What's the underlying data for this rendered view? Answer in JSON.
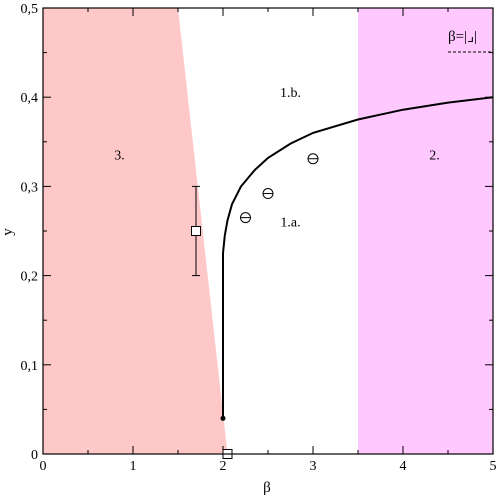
{
  "chart_data": {
    "type": "scatter",
    "title": "",
    "xlabel": "β",
    "ylabel": "y",
    "xlim": [
      0,
      5
    ],
    "ylim": [
      0,
      0.5
    ],
    "x_ticks": [
      "0",
      "1",
      "2",
      "3",
      "4",
      "5"
    ],
    "y_ticks": [
      "0",
      "0,1",
      "0,2",
      "0,3",
      "0,4",
      "0,5"
    ],
    "grid": false,
    "legend": {
      "position": "top-right",
      "entries": [
        {
          "label": "β=|⌟|",
          "style": "dashed"
        }
      ]
    },
    "regions": [
      {
        "label": "3.",
        "color": "#ffc8c8",
        "boundary": [
          [
            0,
            0
          ],
          [
            0,
            0.5
          ],
          [
            1.5,
            0.5
          ],
          [
            2.05,
            0
          ]
        ]
      },
      {
        "label": "2.",
        "color": "#ffc8ff",
        "boundary": [
          [
            3.5,
            0
          ],
          [
            3.5,
            0.5
          ],
          [
            5,
            0.5
          ],
          [
            5,
            0
          ]
        ]
      }
    ],
    "annotations": [
      {
        "text": "3.",
        "x": 0.85,
        "y": 0.33
      },
      {
        "text": "1.b.",
        "x": 2.75,
        "y": 0.4
      },
      {
        "text": "1.a.",
        "x": 2.75,
        "y": 0.255
      },
      {
        "text": "2.",
        "x": 4.35,
        "y": 0.33
      }
    ],
    "series": [
      {
        "type": "line",
        "color": "#000000",
        "points": [
          [
            2.0,
            0.04
          ],
          [
            2.0,
            0.15
          ],
          [
            2.0,
            0.2
          ],
          [
            2.0,
            0.225
          ],
          [
            2.02,
            0.245
          ],
          [
            2.05,
            0.262
          ],
          [
            2.1,
            0.28
          ],
          [
            2.2,
            0.3
          ],
          [
            2.35,
            0.318
          ],
          [
            2.5,
            0.332
          ],
          [
            2.75,
            0.348
          ],
          [
            3.0,
            0.36
          ],
          [
            3.5,
            0.375
          ],
          [
            4.0,
            0.386
          ],
          [
            4.5,
            0.394
          ],
          [
            5.0,
            0.4
          ]
        ]
      },
      {
        "type": "point",
        "marker": "dot",
        "x": [
          2.0
        ],
        "y": [
          0.04
        ]
      },
      {
        "type": "scatter",
        "marker": "circle-bar",
        "x": [
          2.25,
          2.5,
          3.0
        ],
        "y": [
          0.265,
          0.292,
          0.331
        ]
      },
      {
        "type": "scatter",
        "marker": "square",
        "x": [
          1.7,
          2.05
        ],
        "y": [
          0.25,
          0.0
        ],
        "y_error": [
          [
            0.2,
            0.3
          ],
          null
        ]
      }
    ]
  }
}
